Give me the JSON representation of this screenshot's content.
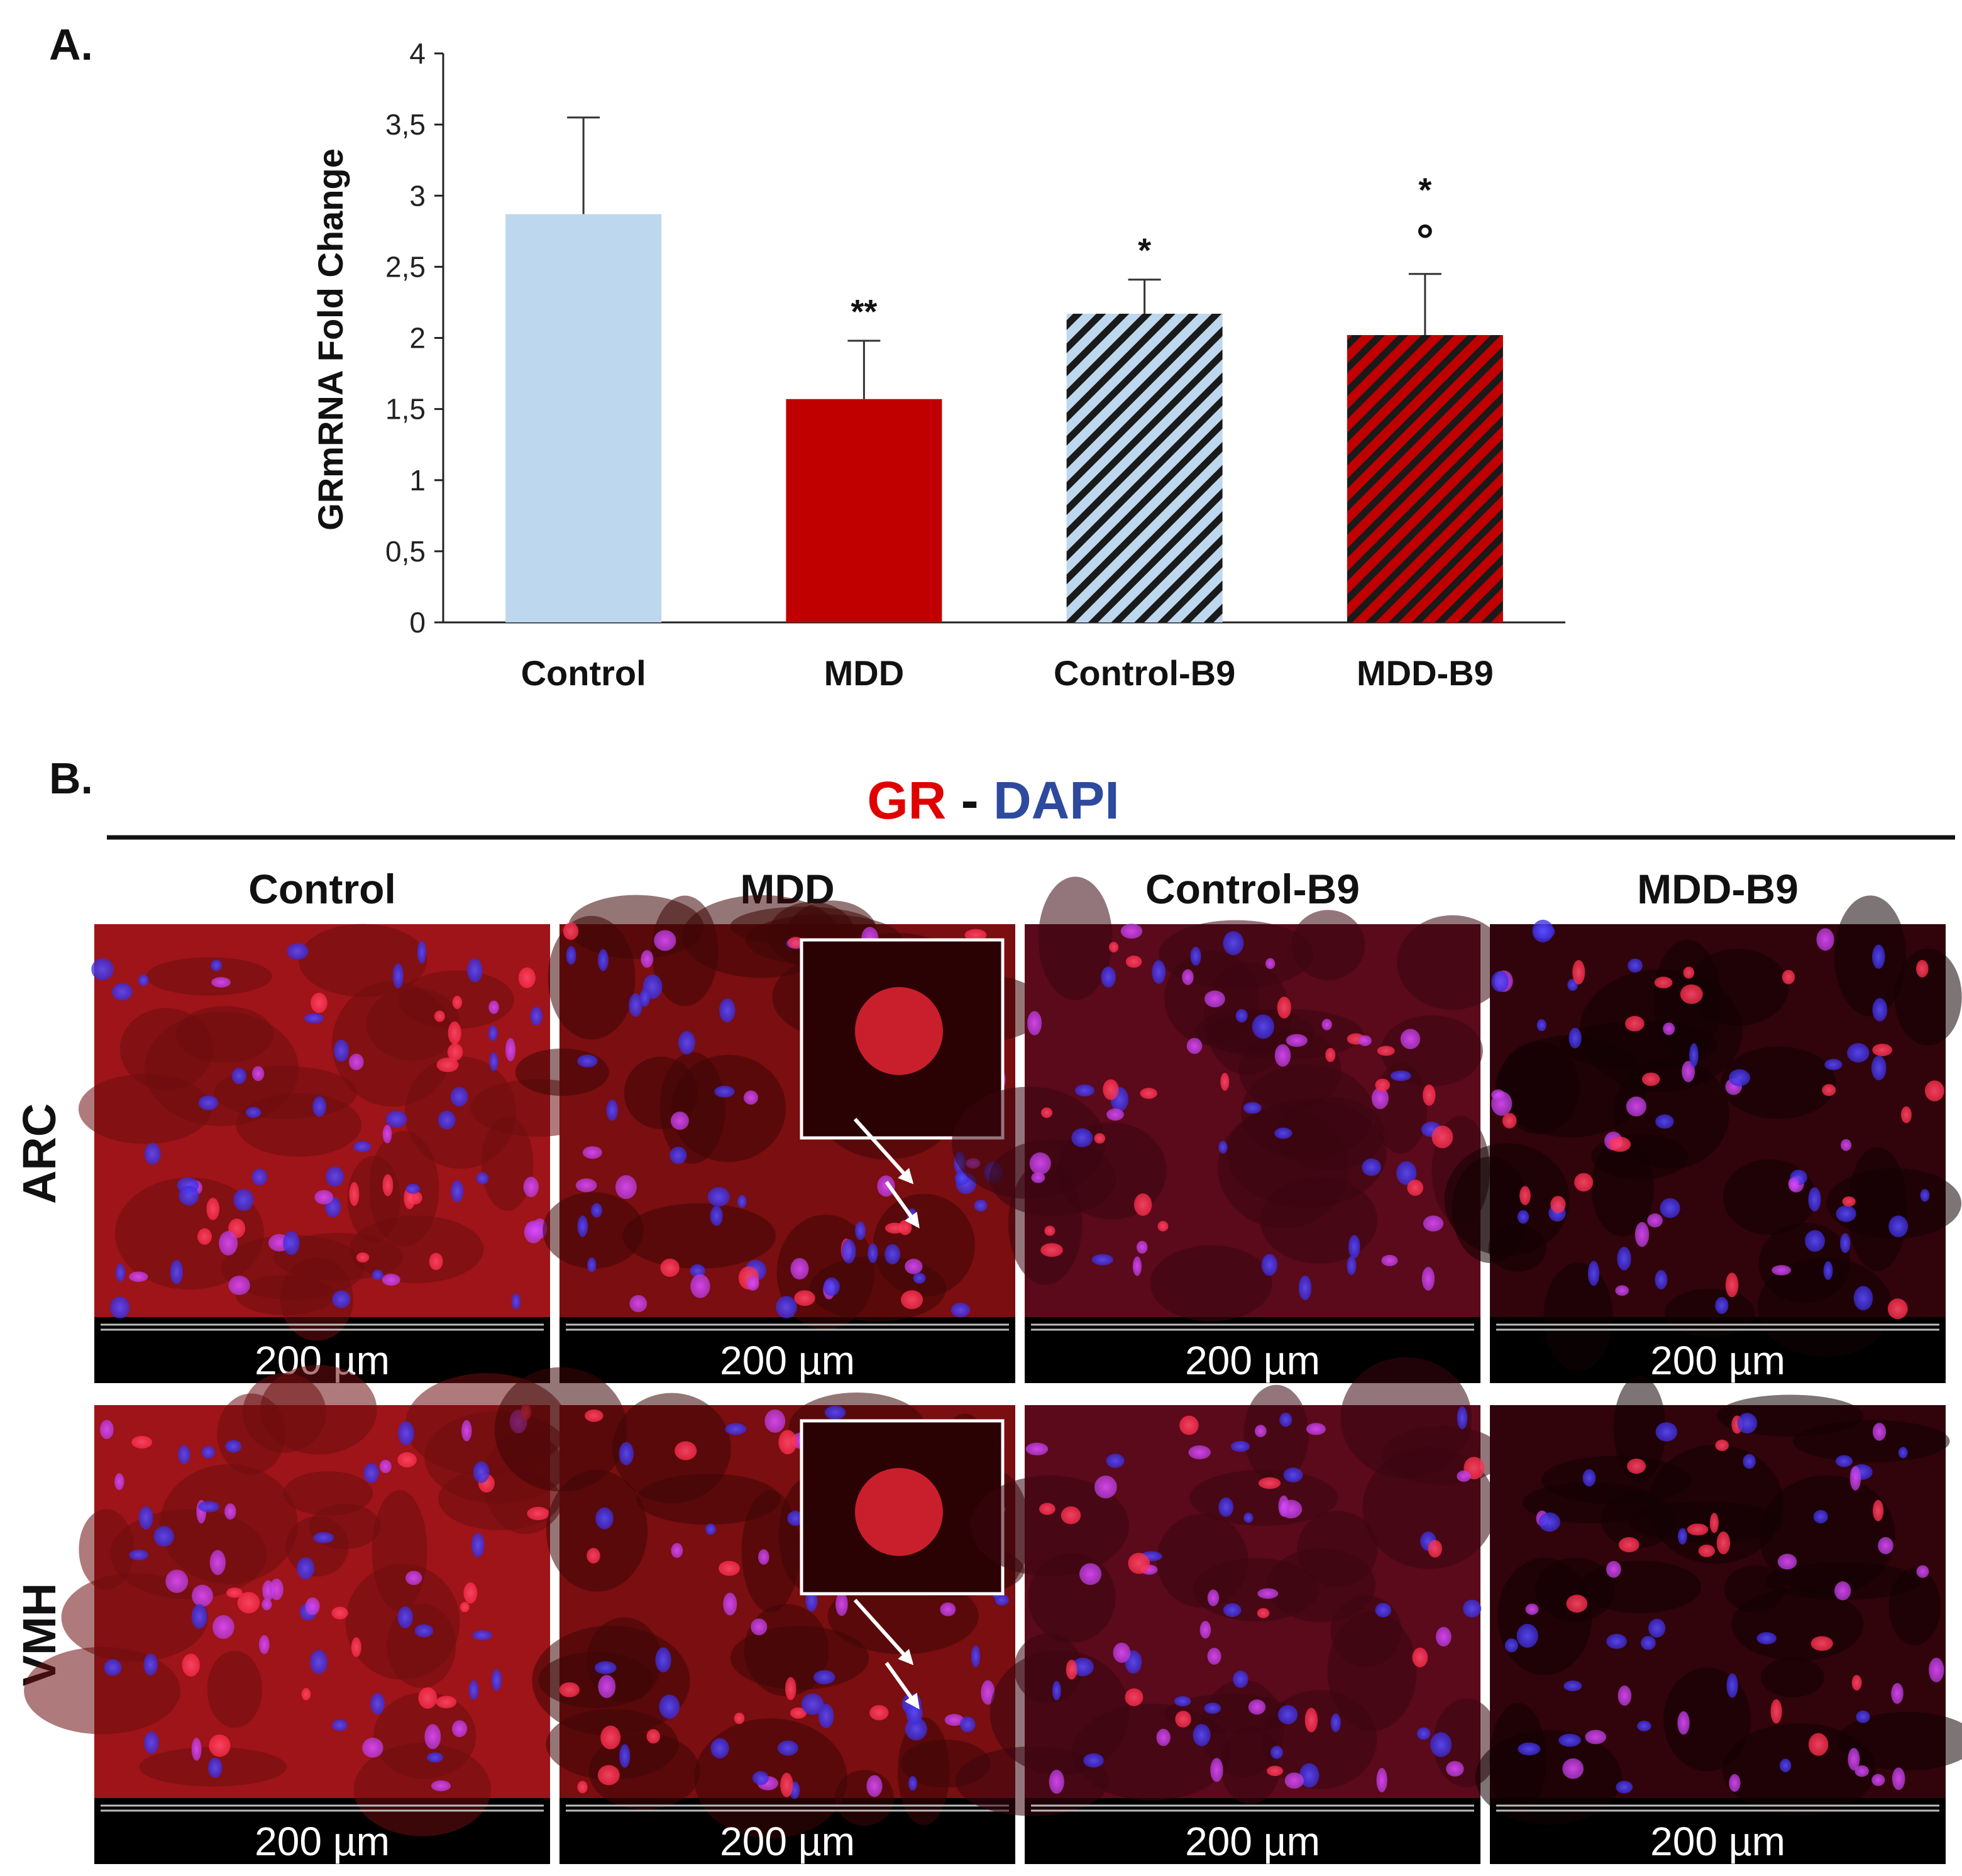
{
  "panel_a": {
    "label": "A.",
    "chart_data": {
      "type": "bar",
      "ylabel": "GRmRNA Fold Change",
      "ylim": [
        0,
        4
      ],
      "yticks": [
        "0",
        "0,5",
        "1",
        "1,5",
        "2",
        "2,5",
        "3",
        "3,5",
        "4"
      ],
      "yticks_values": [
        0,
        0.5,
        1,
        1.5,
        2,
        2.5,
        3,
        3.5,
        4
      ],
      "grid": false,
      "categories": [
        "Control",
        "MDD",
        "Control-B9",
        "MDD-B9"
      ],
      "values": [
        2.87,
        1.57,
        2.17,
        2.02
      ],
      "errors": [
        0.68,
        0.41,
        0.24,
        0.43
      ],
      "significance": [
        "",
        "**",
        "*",
        "*"
      ],
      "secondary_marks": [
        "",
        "",
        "",
        "°"
      ],
      "fills": [
        {
          "style": "solid",
          "color": "#bdd7ee"
        },
        {
          "style": "solid",
          "color": "#c00000"
        },
        {
          "style": "hatch",
          "color": "#bdd7ee",
          "stripe": "#1a1a1a"
        },
        {
          "style": "hatch",
          "color": "#c00000",
          "stripe": "#1a1a1a"
        }
      ]
    }
  },
  "panel_b": {
    "label": "B.",
    "legend": {
      "gr": "GR",
      "sep": "-",
      "dapi": "DAPI",
      "gr_color": "#e00000",
      "dapi_color": "#2e4a9e"
    },
    "columns": [
      "Control",
      "MDD",
      "Control-B9",
      "MDD-B9"
    ],
    "rows": [
      "ARC",
      "VMH"
    ],
    "scalebar": "200 µm"
  }
}
